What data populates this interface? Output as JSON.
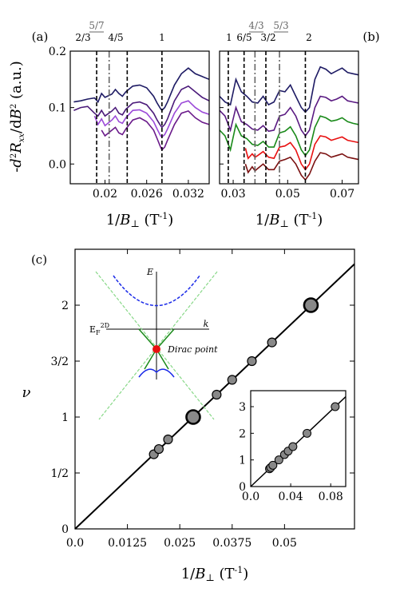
{
  "chart_data": [
    {
      "panel": "(a)",
      "type": "line",
      "xlabel": "1/B⊥ (T⁻¹)",
      "ylabel": "-d²Rₓₓ/dB² (a.u.)",
      "xlim": [
        0.015,
        0.035
      ],
      "ylim": [
        -0.035,
        0.2
      ],
      "xticks": [
        "0.02",
        "0.026",
        "0.032"
      ],
      "xtick_values": [
        0.02,
        0.026,
        0.032
      ],
      "yticks": [
        "0.0",
        "0.1",
        "0.2"
      ],
      "ytick_values": [
        0.0,
        0.1,
        0.2
      ],
      "markers": [
        {
          "label": "2/3",
          "x": 0.0188,
          "style": "dashed",
          "color": "#000000"
        },
        {
          "label": "5/7",
          "x": 0.0206,
          "style": "dashdot",
          "color": "#666666"
        },
        {
          "label": "4/5",
          "x": 0.0232,
          "style": "dashed",
          "color": "#000000"
        },
        {
          "label": "1",
          "x": 0.0282,
          "style": "dashed",
          "color": "#000000"
        }
      ],
      "series": [
        {
          "color": "#1e1b64",
          "x": [
            0.0155,
            0.0165,
            0.0175,
            0.0185,
            0.019,
            0.0195,
            0.02,
            0.021,
            0.0215,
            0.022,
            0.0225,
            0.023,
            0.024,
            0.025,
            0.026,
            0.027,
            0.0275,
            0.028,
            0.0282,
            0.0286,
            0.029,
            0.03,
            0.031,
            0.032,
            0.033,
            0.034,
            0.035
          ],
          "y": [
            0.11,
            0.112,
            0.115,
            0.117,
            0.11,
            0.125,
            0.118,
            0.124,
            0.132,
            0.125,
            0.12,
            0.128,
            0.138,
            0.14,
            0.135,
            0.12,
            0.108,
            0.098,
            0.095,
            0.1,
            0.11,
            0.14,
            0.16,
            0.17,
            0.16,
            0.155,
            0.15
          ]
        },
        {
          "color": "#4b1a7a",
          "x": [
            0.0155,
            0.0165,
            0.0175,
            0.0185,
            0.019,
            0.0195,
            0.02,
            0.021,
            0.0215,
            0.022,
            0.0225,
            0.023,
            0.024,
            0.025,
            0.026,
            0.027,
            0.0275,
            0.028,
            0.0282,
            0.0286,
            0.029,
            0.03,
            0.031,
            0.032,
            0.033,
            0.034,
            0.035
          ],
          "y": [
            0.095,
            0.1,
            0.102,
            0.09,
            0.085,
            0.095,
            0.085,
            0.094,
            0.1,
            0.09,
            0.087,
            0.097,
            0.108,
            0.11,
            0.105,
            0.09,
            0.078,
            0.068,
            0.065,
            0.07,
            0.08,
            0.112,
            0.132,
            0.138,
            0.128,
            0.118,
            0.112
          ]
        },
        {
          "color": "#9b4ad8",
          "x": [
            0.0185,
            0.019,
            0.0195,
            0.02,
            0.021,
            0.0215,
            0.022,
            0.0225,
            0.023,
            0.024,
            0.025,
            0.026,
            0.027,
            0.0275,
            0.028,
            0.0282,
            0.0286,
            0.029,
            0.03,
            0.031,
            0.032,
            0.033,
            0.034,
            0.035
          ],
          "y": [
            0.085,
            0.07,
            0.08,
            0.068,
            0.078,
            0.085,
            0.075,
            0.072,
            0.082,
            0.095,
            0.096,
            0.09,
            0.075,
            0.062,
            0.05,
            0.048,
            0.052,
            0.062,
            0.09,
            0.108,
            0.112,
            0.1,
            0.092,
            0.088
          ]
        },
        {
          "color": "#6a1a8a",
          "x": [
            0.0195,
            0.02,
            0.021,
            0.0215,
            0.022,
            0.0225,
            0.023,
            0.024,
            0.025,
            0.026,
            0.027,
            0.0275,
            0.028,
            0.0282,
            0.0286,
            0.029,
            0.03,
            0.031,
            0.032,
            0.033,
            0.034,
            0.035
          ],
          "y": [
            0.06,
            0.05,
            0.06,
            0.065,
            0.055,
            0.052,
            0.062,
            0.078,
            0.082,
            0.075,
            0.06,
            0.045,
            0.03,
            0.025,
            0.03,
            0.042,
            0.07,
            0.09,
            0.094,
            0.082,
            0.074,
            0.07
          ]
        }
      ]
    },
    {
      "panel": "(b)",
      "type": "line",
      "xlabel": "1/B⊥ (T⁻¹)",
      "xlim": [
        0.025,
        0.076
      ],
      "ylim": [
        -0.035,
        0.2
      ],
      "xticks": [
        "0.03",
        "0.05",
        "0.07"
      ],
      "xtick_values": [
        0.03,
        0.05,
        0.07
      ],
      "markers": [
        {
          "label": "1",
          "x": 0.0282,
          "style": "dashed",
          "color": "#000000"
        },
        {
          "label": "6/5",
          "x": 0.034,
          "style": "dashed",
          "color": "#000000"
        },
        {
          "label": "4/3",
          "x": 0.038,
          "style": "dashdot",
          "color": "#666666"
        },
        {
          "label": "3/2",
          "x": 0.042,
          "style": "dashed",
          "color": "#000000"
        },
        {
          "label": "5/3",
          "x": 0.047,
          "style": "dashdot",
          "color": "#666666"
        },
        {
          "label": "2",
          "x": 0.0565,
          "style": "dashed",
          "color": "#000000"
        }
      ],
      "series": [
        {
          "color": "#1e1b64",
          "x": [
            0.025,
            0.027,
            0.029,
            0.031,
            0.033,
            0.035,
            0.037,
            0.039,
            0.041,
            0.043,
            0.045,
            0.047,
            0.049,
            0.051,
            0.053,
            0.055,
            0.0565,
            0.058,
            0.06,
            0.062,
            0.064,
            0.066,
            0.068,
            0.07,
            0.072,
            0.074,
            0.076
          ],
          "y": [
            0.12,
            0.11,
            0.105,
            0.15,
            0.128,
            0.12,
            0.11,
            0.108,
            0.12,
            0.105,
            0.11,
            0.13,
            0.128,
            0.14,
            0.12,
            0.1,
            0.092,
            0.1,
            0.15,
            0.172,
            0.168,
            0.16,
            0.165,
            0.17,
            0.162,
            0.16,
            0.158
          ]
        },
        {
          "color": "#5a1a82",
          "x": [
            0.025,
            0.027,
            0.029,
            0.031,
            0.033,
            0.035,
            0.037,
            0.039,
            0.041,
            0.043,
            0.045,
            0.047,
            0.049,
            0.051,
            0.053,
            0.055,
            0.0565,
            0.058,
            0.06,
            0.062,
            0.064,
            0.066,
            0.068,
            0.07,
            0.072,
            0.074,
            0.076
          ],
          "y": [
            0.095,
            0.085,
            0.06,
            0.1,
            0.075,
            0.07,
            0.062,
            0.06,
            0.068,
            0.058,
            0.06,
            0.085,
            0.088,
            0.1,
            0.085,
            0.06,
            0.05,
            0.06,
            0.1,
            0.12,
            0.118,
            0.112,
            0.115,
            0.12,
            0.112,
            0.11,
            0.108
          ]
        },
        {
          "color": "#1a8a1a",
          "x": [
            0.025,
            0.027,
            0.029,
            0.031,
            0.033,
            0.035,
            0.037,
            0.039,
            0.041,
            0.043,
            0.045,
            0.047,
            0.049,
            0.051,
            0.053,
            0.055,
            0.0565,
            0.058,
            0.06,
            0.062,
            0.064,
            0.066,
            0.068,
            0.07,
            0.072,
            0.074,
            0.076
          ],
          "y": [
            0.06,
            0.05,
            0.025,
            0.07,
            0.05,
            0.045,
            0.035,
            0.033,
            0.04,
            0.03,
            0.03,
            0.055,
            0.058,
            0.066,
            0.05,
            0.025,
            0.015,
            0.025,
            0.065,
            0.085,
            0.082,
            0.076,
            0.078,
            0.082,
            0.075,
            0.072,
            0.07
          ]
        },
        {
          "color": "#e81010",
          "x": [
            0.0345,
            0.0355,
            0.037,
            0.038,
            0.039,
            0.041,
            0.043,
            0.045,
            0.047,
            0.049,
            0.051,
            0.053,
            0.055,
            0.0565,
            0.058,
            0.06,
            0.062,
            0.064,
            0.066,
            0.068,
            0.07,
            0.072,
            0.074,
            0.076
          ],
          "y": [
            0.028,
            0.01,
            0.018,
            0.012,
            0.015,
            0.022,
            0.012,
            0.01,
            0.03,
            0.032,
            0.038,
            0.025,
            0.0,
            -0.01,
            0.0,
            0.035,
            0.05,
            0.048,
            0.042,
            0.045,
            0.048,
            0.042,
            0.04,
            0.038
          ]
        },
        {
          "color": "#7a1010",
          "x": [
            0.0345,
            0.0355,
            0.037,
            0.038,
            0.039,
            0.041,
            0.043,
            0.045,
            0.047,
            0.049,
            0.051,
            0.053,
            0.055,
            0.0565,
            0.058,
            0.06,
            0.062,
            0.064,
            0.066,
            0.068,
            0.07,
            0.072,
            0.074,
            0.076
          ],
          "y": [
            0.0,
            -0.015,
            -0.005,
            -0.012,
            -0.008,
            0.0,
            -0.01,
            -0.01,
            0.005,
            0.008,
            0.012,
            0.0,
            -0.02,
            -0.028,
            -0.018,
            0.005,
            0.02,
            0.018,
            0.012,
            0.015,
            0.018,
            0.012,
            0.01,
            0.008
          ]
        }
      ]
    },
    {
      "panel": "(c)",
      "type": "scatter",
      "xlabel": "1/B⊥ (T⁻¹)",
      "ylabel": "ν",
      "xlim": [
        0.0,
        0.0667
      ],
      "ylim": [
        0.0,
        2.5
      ],
      "xticks": [
        "0.0",
        "0.0125",
        "0.025",
        "0.0375",
        "0.05"
      ],
      "xtick_values": [
        0.0,
        0.0125,
        0.025,
        0.0375,
        0.05
      ],
      "yticks": [
        "0",
        "1/2",
        "1",
        "3/2",
        "2"
      ],
      "ytick_values": [
        0.0,
        0.5,
        1.0,
        1.5,
        2.0
      ],
      "fit_line": {
        "slope": 35.5,
        "intercept": 0.0
      },
      "points": [
        {
          "x": 0.0188,
          "y": 0.667,
          "size": "small"
        },
        {
          "x": 0.02,
          "y": 0.714,
          "size": "small"
        },
        {
          "x": 0.0222,
          "y": 0.8,
          "size": "small"
        },
        {
          "x": 0.0282,
          "y": 1.0,
          "size": "large"
        },
        {
          "x": 0.0338,
          "y": 1.2,
          "size": "small"
        },
        {
          "x": 0.0375,
          "y": 1.333,
          "size": "small"
        },
        {
          "x": 0.0422,
          "y": 1.5,
          "size": "small"
        },
        {
          "x": 0.047,
          "y": 1.667,
          "size": "small"
        },
        {
          "x": 0.0563,
          "y": 2.0,
          "size": "large"
        }
      ],
      "dirac_inset": {
        "E_label": "E",
        "k_label": "k",
        "fermi_label": "E",
        "fermi_sub": "F",
        "fermi_sup": "2D",
        "dirac_label": "Dirac point"
      },
      "small_inset": {
        "xlim": [
          0.0,
          0.095
        ],
        "ylim": [
          0.0,
          3.6
        ],
        "xticks": [
          "0.0",
          "0.04",
          "0.08"
        ],
        "xtick_values": [
          0.0,
          0.04,
          0.08
        ],
        "yticks": [
          "0",
          "1",
          "2",
          "3"
        ],
        "ytick_values": [
          0,
          1,
          2,
          3
        ],
        "fit_line": {
          "slope": 35.5,
          "intercept": 0.0
        },
        "points": [
          {
            "x": 0.0188,
            "y": 0.667
          },
          {
            "x": 0.02,
            "y": 0.714
          },
          {
            "x": 0.0222,
            "y": 0.8
          },
          {
            "x": 0.0282,
            "y": 1.0
          },
          {
            "x": 0.0338,
            "y": 1.2
          },
          {
            "x": 0.0375,
            "y": 1.333
          },
          {
            "x": 0.0422,
            "y": 1.5
          },
          {
            "x": 0.0563,
            "y": 2.0
          },
          {
            "x": 0.0845,
            "y": 3.0
          }
        ]
      }
    }
  ]
}
